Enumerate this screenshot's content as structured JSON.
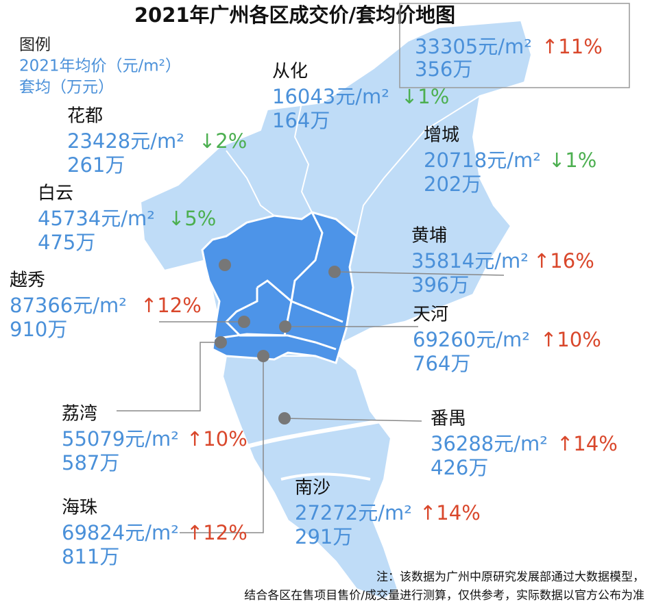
{
  "header": {
    "title": "2021年广州各区成交价/套均价地图"
  },
  "legend": {
    "heading": "图例",
    "price_label": "2021年均价（元/m²）",
    "volume_label": "套均（万元）"
  },
  "callout": {
    "price": "33305元/m²",
    "change": "↑11%",
    "change_color": "#d9472b",
    "volume": "356万"
  },
  "districts": [
    {
      "name": "从化",
      "price": "16043元/m²",
      "change": "↓1%",
      "change_color": "#4caf50",
      "volume": "164万"
    },
    {
      "name": "花都",
      "price": "23428元/m²",
      "change": "↓2%",
      "change_color": "#4caf50",
      "volume": "261万"
    },
    {
      "name": "增城",
      "price": "20718元/m²",
      "change": "↓1%",
      "change_color": "#4caf50",
      "volume": "202万"
    },
    {
      "name": "白云",
      "price": "45734元/m²",
      "change": "↓5%",
      "change_color": "#4caf50",
      "volume": "475万"
    },
    {
      "name": "黄埔",
      "price": "35814元/m²",
      "change": "↑16%",
      "change_color": "#d9472b",
      "volume": "396万"
    },
    {
      "name": "越秀",
      "price": "87366元/m²",
      "change": "↑12%",
      "change_color": "#d9472b",
      "volume": "910万"
    },
    {
      "name": "天河",
      "price": "69260元/m²",
      "change": "↑10%",
      "change_color": "#d9472b",
      "volume": "764万"
    },
    {
      "name": "荔湾",
      "price": "55079元/m²",
      "change": "↑10%",
      "change_color": "#d9472b",
      "volume": "587万"
    },
    {
      "name": "番禺",
      "price": "36288元/m²",
      "change": "↑14%",
      "change_color": "#d9472b",
      "volume": "426万"
    },
    {
      "name": "海珠",
      "price": "69824元/m²",
      "change": "↑12%",
      "change_color": "#d9472b",
      "volume": "811万"
    },
    {
      "name": "南沙",
      "price": "27272元/m²",
      "change": "↑14%",
      "change_color": "#d9472b",
      "volume": "291万"
    }
  ],
  "note": {
    "line1": "注：该数据为广州中原研究发展部通过大数据模型，",
    "line2": "结合各区在售项目售价/成交量进行测算，仅供参考，实际数据以官方公布为准"
  }
}
